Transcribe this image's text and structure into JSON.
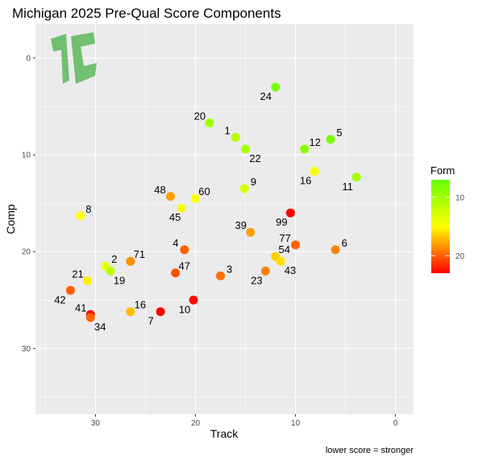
{
  "chart_data": {
    "type": "scatter",
    "title": "Michigan 2025 Pre-Qual Score Components",
    "xlabel": "Track",
    "ylabel": "Comp",
    "caption": "lower score = stronger",
    "x_reversed": true,
    "y_reversed": true,
    "xlim": [
      36,
      -1.8
    ],
    "ylim": [
      -3.5,
      36.8
    ],
    "xticks": [
      30,
      20,
      10,
      0
    ],
    "yticks": [
      0,
      10,
      20,
      30
    ],
    "grid": true,
    "legend": {
      "title": "Form",
      "position": "right",
      "range": [
        7,
        23
      ],
      "ticks": [
        10,
        20
      ],
      "colors": [
        "#ff0000",
        "#ffff00",
        "#66ff00"
      ]
    },
    "points": [
      {
        "label": "24",
        "x": 12.0,
        "y": 3.0,
        "form": 8.0
      },
      {
        "label": "20",
        "x": 18.6,
        "y": 6.7,
        "form": 10.0
      },
      {
        "label": "1",
        "x": 16.0,
        "y": 8.2,
        "form": 11.0
      },
      {
        "label": "22",
        "x": 15.0,
        "y": 9.4,
        "form": 10.5
      },
      {
        "label": "12",
        "x": 9.1,
        "y": 9.4,
        "form": 9.0
      },
      {
        "label": "5",
        "x": 6.5,
        "y": 8.4,
        "form": 8.0
      },
      {
        "label": "16",
        "x": 8.1,
        "y": 11.7,
        "form": 14.5
      },
      {
        "label": "11",
        "x": 3.9,
        "y": 12.3,
        "form": 10.0
      },
      {
        "label": "9",
        "x": 15.1,
        "y": 13.5,
        "form": 13.0
      },
      {
        "label": "48",
        "x": 22.5,
        "y": 14.3,
        "form": 18.0
      },
      {
        "label": "60",
        "x": 20.0,
        "y": 14.5,
        "form": 15.0
      },
      {
        "label": "45",
        "x": 21.4,
        "y": 15.5,
        "form": 14.5
      },
      {
        "label": "8",
        "x": 31.5,
        "y": 16.3,
        "form": 15.0
      },
      {
        "label": "99",
        "x": 10.5,
        "y": 16.0,
        "form": 23.0
      },
      {
        "label": "39",
        "x": 14.5,
        "y": 18.0,
        "form": 18.0
      },
      {
        "label": "4",
        "x": 21.1,
        "y": 19.8,
        "form": 20.0
      },
      {
        "label": "6",
        "x": 6.0,
        "y": 19.8,
        "form": 19.0
      },
      {
        "label": "77",
        "x": 10.0,
        "y": 19.3,
        "form": 20.0
      },
      {
        "label": "54",
        "x": 12.0,
        "y": 20.5,
        "form": 16.5
      },
      {
        "label": "43",
        "x": 11.5,
        "y": 21.0,
        "form": 16.0
      },
      {
        "label": "71",
        "x": 26.5,
        "y": 21.0,
        "form": 18.5
      },
      {
        "label": "47",
        "x": 22.0,
        "y": 22.2,
        "form": 20.5
      },
      {
        "label": "3",
        "x": 17.5,
        "y": 22.5,
        "form": 19.5
      },
      {
        "label": "23",
        "x": 13.0,
        "y": 22.0,
        "form": 19.0
      },
      {
        "label": "2",
        "x": 29.0,
        "y": 21.5,
        "form": 14.0
      },
      {
        "label": "19",
        "x": 28.5,
        "y": 22.0,
        "form": 11.5
      },
      {
        "label": "21",
        "x": 30.8,
        "y": 23.0,
        "form": 15.5
      },
      {
        "label": "42",
        "x": 32.5,
        "y": 24.0,
        "form": 20.0
      },
      {
        "label": "16",
        "x": 26.5,
        "y": 26.2,
        "form": 17.0
      },
      {
        "label": "7",
        "x": 23.5,
        "y": 26.2,
        "form": 23.5
      },
      {
        "label": "10",
        "x": 20.2,
        "y": 25.0,
        "form": 22.5
      },
      {
        "label": "41",
        "x": 30.5,
        "y": 26.5,
        "form": 24.0
      },
      {
        "label": "34",
        "x": 30.5,
        "y": 26.8,
        "form": 20.0
      }
    ]
  }
}
